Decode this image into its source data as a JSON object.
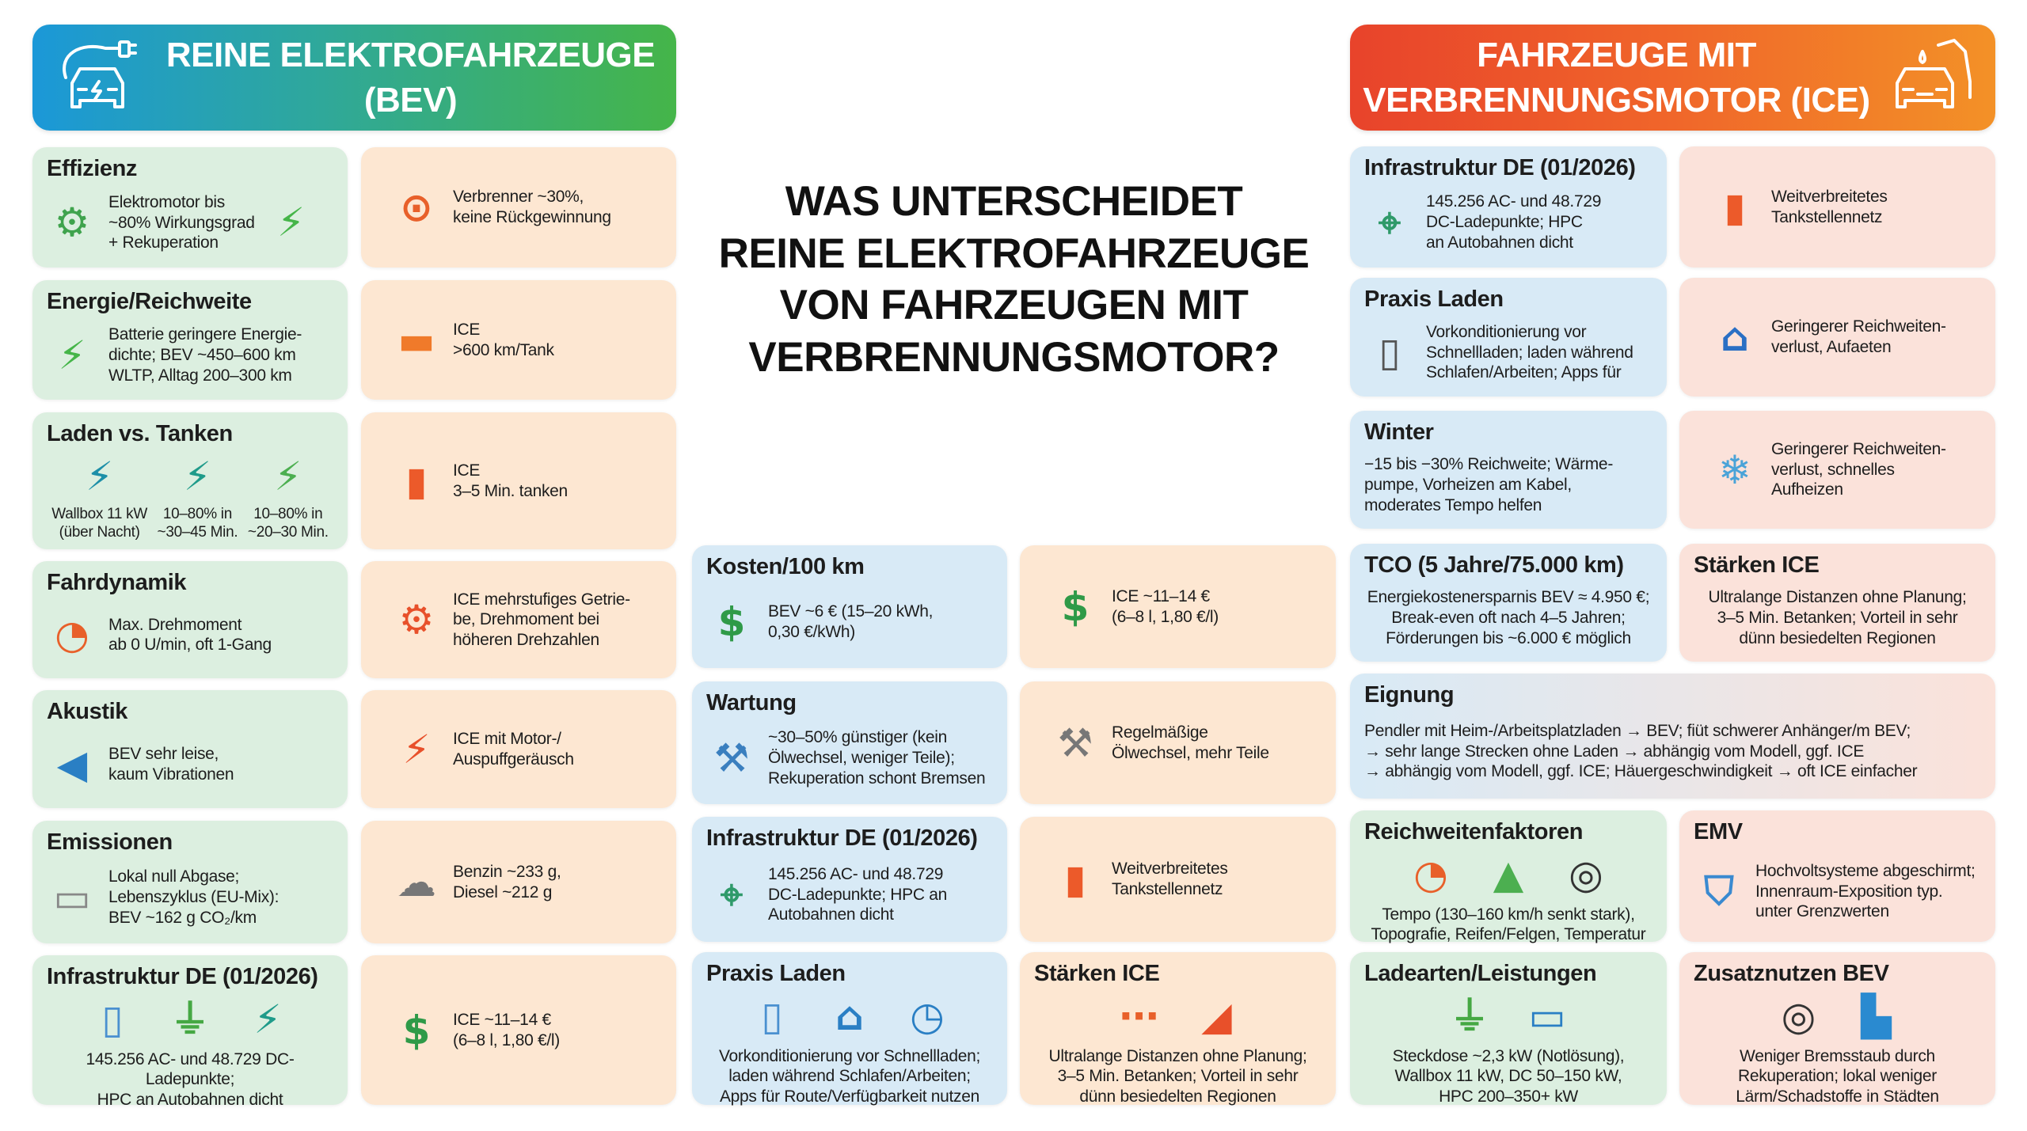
{
  "header": {
    "bev_title": "REINE ELEKTROFAHRZEUGE\n(BEV)",
    "bev_icon": "electric-car-plug-icon",
    "ice_title": "FAHRZEUGE MIT\nVERBRENNUNGSMOTOR (ICE)",
    "ice_icon": "car-fuel-nozzle-icon"
  },
  "main_title": "WAS UNTERSCHEIDET\nREINE ELEKTROFAHRZEUGE\nVON FAHRZEUGEN MIT\nVERBRENNUNGSMOTOR?",
  "colors": {
    "green": "#dcefe0",
    "peach": "#fde7d2",
    "blue": "#d8eaf6",
    "pink": "#fbe2da",
    "bev_header_start": "#1b98d8",
    "bev_header_end": "#45b549",
    "ice_header_start": "#e8432b",
    "ice_header_end": "#f39127"
  },
  "cells": [
    {
      "id": "L1",
      "tone": "green",
      "mode": "side",
      "title": "Effizienz",
      "icons": [
        "electric-motor"
      ],
      "icons_right": [
        "battery"
      ],
      "text": "Elektromotor bis\n~80% Wirkungsgrad\n+ Rekuperation"
    },
    {
      "id": "L1i",
      "tone": "peach",
      "mode": "side",
      "title": "",
      "icons": [
        "piston"
      ],
      "text": "Verbrenner ~30%,\nkeine Rückgewinnung"
    },
    {
      "id": "L2",
      "tone": "green",
      "mode": "side",
      "title": "Energie/Reichweite",
      "icons": [
        "battery"
      ],
      "text": "Batterie geringere Energie-\ndichte; BEV ~450–600 km\nWLTP, Alltag 200–300 km"
    },
    {
      "id": "L2i",
      "tone": "peach",
      "mode": "side",
      "title": "",
      "icons": [
        "fuel-tank"
      ],
      "text": "ICE\n>600 km/Tank"
    },
    {
      "id": "L3",
      "tone": "green",
      "mode": "cols",
      "title": "Laden vs. Tanken",
      "items": [
        {
          "icon": "wallbox",
          "caption": "Wallbox 11 kW\n(über Nacht)"
        },
        {
          "icon": "charging-station",
          "caption": "10–80% in\n~30–45 Min."
        },
        {
          "icon": "fast-charger",
          "caption": "10–80% in\n~20–30 Min."
        }
      ]
    },
    {
      "id": "L3i",
      "tone": "peach",
      "mode": "side",
      "title": "",
      "icons": [
        "fuel-pump"
      ],
      "text": "ICE\n3–5 Min. tanken"
    },
    {
      "id": "L4",
      "tone": "green",
      "mode": "side",
      "title": "Fahrdynamik",
      "icons": [
        "speedometer"
      ],
      "text": "Max. Drehmoment\nab 0 U/min, oft 1-Gang"
    },
    {
      "id": "L4i",
      "tone": "peach",
      "mode": "side",
      "title": "",
      "icons": [
        "gears"
      ],
      "text": "ICE mehrstufiges Getrie-\nbe, Drehmoment bei\nhöheren Drehzahlen"
    },
    {
      "id": "L5",
      "tone": "green",
      "mode": "side",
      "title": "Akustik",
      "icons": [
        "speaker"
      ],
      "text": "BEV sehr leise,\nkaum Vibrationen"
    },
    {
      "id": "L5i",
      "tone": "peach",
      "mode": "side",
      "title": "",
      "icons": [
        "engine"
      ],
      "text": "ICE mit Motor-/\nAuspuffgeräusch"
    },
    {
      "id": "L6",
      "tone": "green",
      "mode": "side",
      "title": "Emissionen",
      "icons": [
        "exhaust-pipe"
      ],
      "text": "Lokal null Abgase;\nLebenszyklus (EU-Mix):\nBEV ~162 g CO₂/km"
    },
    {
      "id": "L6i",
      "tone": "peach",
      "mode": "side",
      "title": "",
      "icons": [
        "exhaust-smoke"
      ],
      "text": "Benzin ~233 g,\nDiesel ~212 g"
    },
    {
      "id": "L7",
      "tone": "green",
      "mode": "stack",
      "title": "Infrastruktur DE (01/2026)",
      "icons": [
        "smartphone",
        "plug",
        "charging-station"
      ],
      "text": "145.256 AC- und 48.729 DC-Ladepunkte;\nHPC an Autobahnen dicht"
    },
    {
      "id": "L7i",
      "tone": "peach",
      "mode": "side",
      "title": "",
      "icons": [
        "money"
      ],
      "text": "ICE ~11–14 €\n(6–8 l, 1,80 €/l)"
    },
    {
      "id": "M1",
      "tone": "blue",
      "mode": "side",
      "title": "Kosten/100 km",
      "icons": [
        "money"
      ],
      "text": "BEV ~6 € (15–20 kWh,\n0,30 €/kWh)"
    },
    {
      "id": "M1i",
      "tone": "peach",
      "mode": "side",
      "title": "",
      "icons": [
        "money"
      ],
      "text": "ICE ~11–14 €\n(6–8 l, 1,80 €/l)"
    },
    {
      "id": "M2",
      "tone": "blue",
      "mode": "side",
      "title": "Wartung",
      "icons": [
        "tools"
      ],
      "text": "~30–50% günstiger (kein\nÖlwechsel, weniger Teile);\nRekuperation schont Bremsen"
    },
    {
      "id": "M2i",
      "tone": "peach",
      "mode": "side",
      "title": "",
      "icons": [
        "wrench"
      ],
      "text": "Regelmäßige\nÖlwechsel, mehr Teile"
    },
    {
      "id": "M3",
      "tone": "blue",
      "mode": "side",
      "title": "Infrastruktur DE (01/2026)",
      "icons": [
        "map"
      ],
      "text": "145.256 AC- und 48.729\nDC-Ladepunkte; HPC an\nAutobahnen dicht"
    },
    {
      "id": "M3i",
      "tone": "peach",
      "mode": "side",
      "title": "",
      "icons": [
        "fuel-pump"
      ],
      "text": "Weitverbreitetes\nTankstellennetz"
    },
    {
      "id": "M4",
      "tone": "blue",
      "mode": "stack",
      "title": "Praxis Laden",
      "icons": [
        "smartphone",
        "house",
        "clock"
      ],
      "text": "Vorkonditionierung vor Schnellladen;\nladen während Schlafen/Arbeiten;\nApps für Route/Verfügbarkeit nutzen"
    },
    {
      "id": "M4i",
      "tone": "peach",
      "mode": "stack",
      "title": "Stärken ICE",
      "icons": [
        "route",
        "fuel-nozzle"
      ],
      "text": "Ultralange Distanzen ohne Planung;\n3–5 Min. Betanken; Vorteil in sehr\ndünn besiedelten Regionen"
    },
    {
      "id": "R1",
      "tone": "blue",
      "mode": "side",
      "title": "Infrastruktur DE (01/2026)",
      "icons": [
        "map"
      ],
      "text": "145.256 AC- und 48.729\nDC-Ladepunkte; HPC\nan Autobahnen dicht"
    },
    {
      "id": "R1i",
      "tone": "pink",
      "mode": "side",
      "title": "",
      "icons": [
        "fuel-pump"
      ],
      "text": "Weitverbreitetes\nTankstellennetz"
    },
    {
      "id": "R2",
      "tone": "blue",
      "mode": "side",
      "title": "Praxis Laden",
      "icons": [
        "smartphone-app"
      ],
      "text": "Vorkonditionierung vor\nSchnellladen; laden während\nSchlafen/Arbeiten; Apps für"
    },
    {
      "id": "R2i",
      "tone": "pink",
      "mode": "side",
      "title": "",
      "icons": [
        "house-clock"
      ],
      "text": "Geringerer Reichweiten-\nverlust, Aufaeten"
    },
    {
      "id": "R3",
      "tone": "blue",
      "mode": "text",
      "title": "Winter",
      "text": "−15 bis −30% Reichweite; Wärme-\npumpe, Vorheizen am Kabel,\n            moderates Tempo helfen"
    },
    {
      "id": "R3i",
      "tone": "pink",
      "mode": "side",
      "title": "",
      "icons": [
        "snowflake"
      ],
      "text": "Geringerer Reichweiten-\nverlust, schnelles\nAufheizen"
    },
    {
      "id": "R4",
      "tone": "blue",
      "mode": "center",
      "title": "TCO (5 Jahre/75.000 km)",
      "text": "Energiekostenersparnis BEV ≈ 4.950 €;\nBreak-even oft nach 4–5 Jahren;\nFörderungen bis ~6.000 € möglich"
    },
    {
      "id": "R4i",
      "tone": "pink",
      "mode": "center",
      "title": "Stärken ICE",
      "text": "Ultralange Distanzen ohne Planung;\n3–5 Min. Betanken; Vorteil in sehr\ndünn besiedelten Regionen"
    },
    {
      "id": "R5",
      "tone": "blue-pink",
      "mode": "text",
      "title": "Eignung",
      "text": "Pendler mit Heim-/Arbeitsplatzladen → BEV; fiüt schwerer Anhänger/m BEV;\n→ sehr lange Strecken ohne Laden → abhängig vom Modell, ggf. ICE\n→ abhängig vom Modell, ggf. ICE; Häuergeschwindigkeit → oft ICE einfacher"
    },
    {
      "id": "R6",
      "tone": "green",
      "mode": "stack",
      "title": "Reichweitenfaktoren",
      "icons": [
        "speedometer",
        "mountain",
        "tire"
      ],
      "text": "Tempo (130–160 km/h senkt stark),\nTopografie, Reifen/Felgen, Temperatur"
    },
    {
      "id": "R6i",
      "tone": "pink",
      "mode": "side",
      "title": "EMV",
      "icons": [
        "shield"
      ],
      "text": "Hochvoltsysteme abgeschirmt;\nInnenraum-Exposition typ.\nunter Grenzwerten"
    },
    {
      "id": "R7",
      "tone": "green",
      "mode": "stack",
      "title": "Ladearten/Leistungen",
      "icons": [
        "plug",
        "laptop"
      ],
      "text": "Steckdose ~2,3 kW (Notlösung),\nWallbox 11 kW, DC 50–150 kW,\nHPC 200–350+ kW"
    },
    {
      "id": "R7i",
      "tone": "pink",
      "mode": "stack",
      "title": "Zusatznutzen BEV",
      "icons": [
        "tire",
        "city"
      ],
      "text": "Weniger Bremsstaub durch\nRekuperation; lokal weniger\nLärm/Schadstoffe in Städten"
    }
  ]
}
